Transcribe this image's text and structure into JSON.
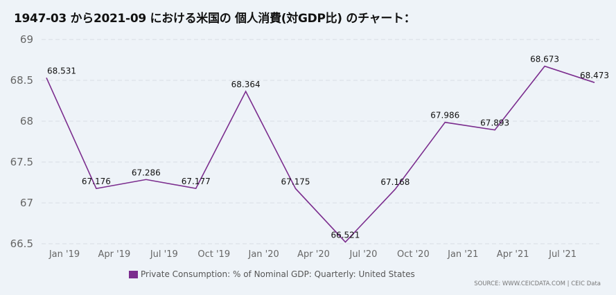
{
  "header": {
    "title": "1947-03 から2021-09 における米国の 個人消費(対GDP比) のチャート："
  },
  "chart_data": {
    "type": "line",
    "title": "1947-03 から2021-09 における米国の 個人消費(対GDP比) のチャート：",
    "xlabel": "",
    "ylabel": "",
    "ylim": [
      66.5,
      69
    ],
    "yticks": [
      "69",
      "68.5",
      "68",
      "67.5",
      "67",
      "66.5"
    ],
    "ytick_values": [
      69,
      68.5,
      68,
      67.5,
      67,
      66.5
    ],
    "xticks": [
      "Jan '19",
      "Apr '19",
      "Jul '19",
      "Oct '19",
      "Jan '20",
      "Apr '20",
      "Jul '20",
      "Oct '20",
      "Jan '21",
      "Apr '21",
      "Jul '21"
    ],
    "grid": true,
    "legend_position": "bottom-left",
    "series": [
      {
        "name": "Private Consumption: % of Nominal GDP: Quarterly: United States",
        "color": "#7b2d8e",
        "x": [
          "2019-03",
          "2019-06",
          "2019-09",
          "2019-12",
          "2020-03",
          "2020-06",
          "2020-09",
          "2020-12",
          "2021-03",
          "2021-06",
          "2021-09",
          "2021-12"
        ],
        "values": [
          68.531,
          67.176,
          67.286,
          67.177,
          68.364,
          67.175,
          66.521,
          67.168,
          67.986,
          67.893,
          68.673,
          68.473
        ],
        "labels": [
          "68.531",
          "67.176",
          "67.286",
          "67.177",
          "68.364",
          "67.175",
          "66.521",
          "67.168",
          "67.986",
          "67.893",
          "68.673",
          "68.473"
        ]
      }
    ]
  },
  "legend": {
    "label": "Private Consumption: % of Nominal GDP: Quarterly: United States",
    "color": "#7b2d8e"
  },
  "source": "SOURCE: WWW.CEICDATA.COM | CEIC Data"
}
